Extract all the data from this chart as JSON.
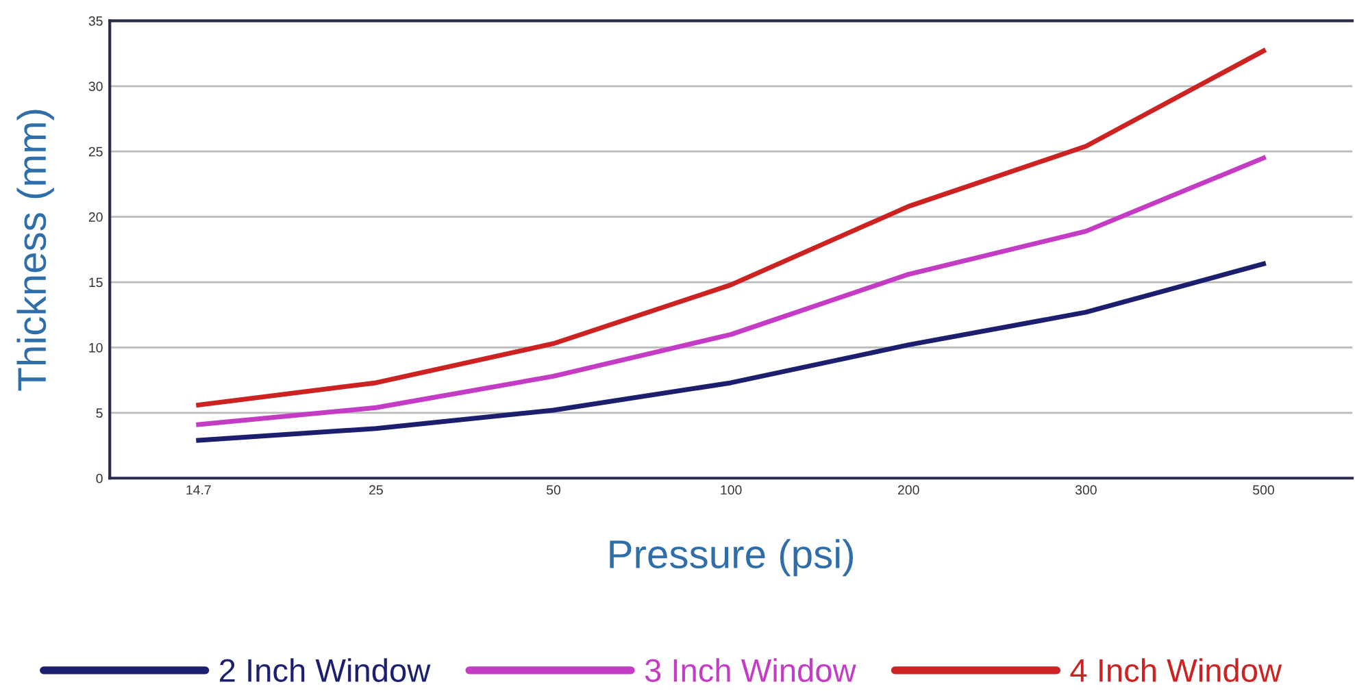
{
  "chart_data": {
    "type": "line",
    "xlabel": "Pressure (psi)",
    "ylabel": "Thickness (mm)",
    "categories": [
      "14.7",
      "25",
      "50",
      "100",
      "200",
      "300",
      "500"
    ],
    "series": [
      {
        "name": "2 Inch Window",
        "color": "#1b1f6e",
        "values": [
          2.9,
          3.8,
          5.2,
          7.3,
          10.2,
          12.7,
          16.4
        ]
      },
      {
        "name": "3 Inch Window",
        "color": "#c43cc4",
        "values": [
          4.1,
          5.4,
          7.8,
          11.0,
          15.6,
          18.9,
          24.5
        ]
      },
      {
        "name": "4 Inch Window",
        "color": "#cc2222",
        "values": [
          5.6,
          7.3,
          10.3,
          14.8,
          20.8,
          25.4,
          32.7
        ]
      }
    ],
    "ylim": [
      0,
      35
    ],
    "yticks": [
      0,
      5,
      10,
      15,
      20,
      25,
      30,
      35
    ],
    "grid": "y",
    "legend": "bottom",
    "marker": "none",
    "line_style": "solid"
  }
}
